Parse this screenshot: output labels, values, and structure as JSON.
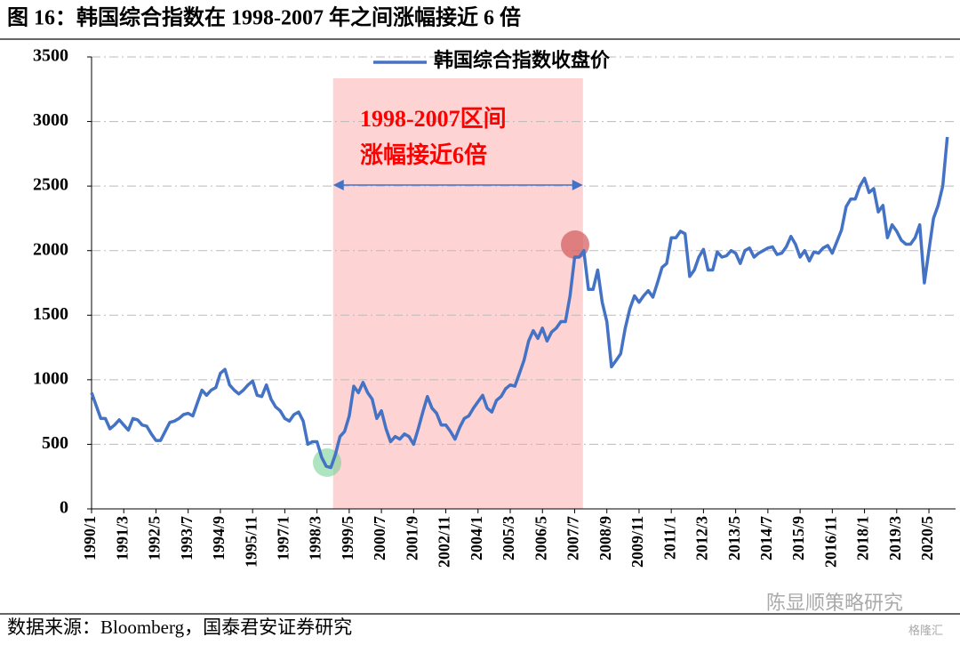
{
  "chart_data": {
    "type": "line",
    "title": "图 16：韩国综合指数在 1998-2007 年之间涨幅接近 6 倍",
    "annotations": [
      "1998-2007区间",
      "涨幅接近6倍"
    ],
    "source": "数据来源：Bloomberg，国泰君安证券研究",
    "watermark": "陈显顺策略研究",
    "watermark2": "格隆汇",
    "categories": [
      "1990/1",
      null,
      null,
      null,
      null,
      null,
      null,
      "1991/3",
      null,
      null,
      null,
      null,
      null,
      null,
      "1992/5",
      null,
      null,
      null,
      null,
      null,
      null,
      "1993/7",
      null,
      null,
      null,
      null,
      null,
      null,
      "1994/9",
      null,
      null,
      null,
      null,
      null,
      null,
      "1995/11",
      null,
      null,
      null,
      null,
      null,
      null,
      "1997/1",
      null,
      null,
      null,
      null,
      null,
      null,
      "1998/3",
      null,
      null,
      null,
      null,
      null,
      null,
      "1999/5",
      null,
      null,
      null,
      null,
      null,
      null,
      "2000/7",
      null,
      null,
      null,
      null,
      null,
      null,
      "2001/9",
      null,
      null,
      null,
      null,
      null,
      null,
      "2002/11",
      null,
      null,
      null,
      null,
      null,
      null,
      "2004/1",
      null,
      null,
      null,
      null,
      null,
      null,
      "2005/3",
      null,
      null,
      null,
      null,
      null,
      null,
      "2006/5",
      null,
      null,
      null,
      null,
      null,
      null,
      "2007/7",
      null,
      null,
      null,
      null,
      null,
      null,
      "2008/9",
      null,
      null,
      null,
      null,
      null,
      null,
      "2009/11",
      null,
      null,
      null,
      null,
      null,
      null,
      "2011/1",
      null,
      null,
      null,
      null,
      null,
      null,
      "2012/3",
      null,
      null,
      null,
      null,
      null,
      null,
      "2013/5",
      null,
      null,
      null,
      null,
      null,
      null,
      "2014/7",
      null,
      null,
      null,
      null,
      null,
      null,
      "2015/9",
      null,
      null,
      null,
      null,
      null,
      null,
      "2016/11",
      null,
      null,
      null,
      null,
      null,
      null,
      "2018/1",
      null,
      null,
      null,
      null,
      null,
      null,
      "2019/3",
      null,
      null,
      null,
      null,
      null,
      null,
      "2020/5",
      null,
      null,
      null,
      null
    ],
    "series": [
      {
        "name": "韩国综合指数收盘价",
        "color": "#4472c4",
        "values": [
          900,
          800,
          700,
          700,
          620,
          650,
          690,
          650,
          610,
          700,
          690,
          650,
          640,
          580,
          530,
          530,
          600,
          670,
          680,
          700,
          730,
          740,
          720,
          820,
          920,
          880,
          920,
          940,
          1050,
          1080,
          960,
          920,
          890,
          920,
          960,
          990,
          880,
          870,
          960,
          850,
          790,
          760,
          700,
          680,
          730,
          750,
          680,
          500,
          520,
          520,
          400,
          330,
          320,
          420,
          560,
          600,
          720,
          950,
          900,
          980,
          900,
          850,
          700,
          760,
          620,
          520,
          560,
          540,
          580,
          560,
          500,
          620,
          750,
          870,
          780,
          740,
          650,
          650,
          600,
          540,
          630,
          700,
          720,
          780,
          830,
          880,
          780,
          750,
          840,
          870,
          930,
          960,
          950,
          1050,
          1150,
          1300,
          1380,
          1320,
          1400,
          1300,
          1370,
          1400,
          1450,
          1450,
          1650,
          1950,
          1950,
          2000,
          1700,
          1700,
          1850,
          1600,
          1450,
          1100,
          1150,
          1200,
          1400,
          1550,
          1650,
          1600,
          1650,
          1690,
          1640,
          1750,
          1870,
          1900,
          2100,
          2100,
          2150,
          2130,
          1800,
          1850,
          1950,
          2010,
          1850,
          1850,
          1990,
          1950,
          1960,
          2000,
          1980,
          1900,
          2000,
          2020,
          1950,
          1980,
          2000,
          2020,
          2030,
          1970,
          1980,
          2030,
          2110,
          2050,
          1950,
          2000,
          1920,
          1990,
          1980,
          2020,
          2040,
          1980,
          2070,
          2160,
          2340,
          2400,
          2400,
          2500,
          2560,
          2450,
          2480,
          2300,
          2350,
          2100,
          2200,
          2150,
          2080,
          2050,
          2050,
          2100,
          2200,
          1750,
          2000,
          2250,
          2350,
          2500,
          2880
        ]
      }
    ],
    "ylim": [
      0,
      3500
    ],
    "yticks": [
      0,
      500,
      1000,
      1500,
      2000,
      2500,
      3000,
      3500
    ],
    "grid": true,
    "legend": "top"
  }
}
